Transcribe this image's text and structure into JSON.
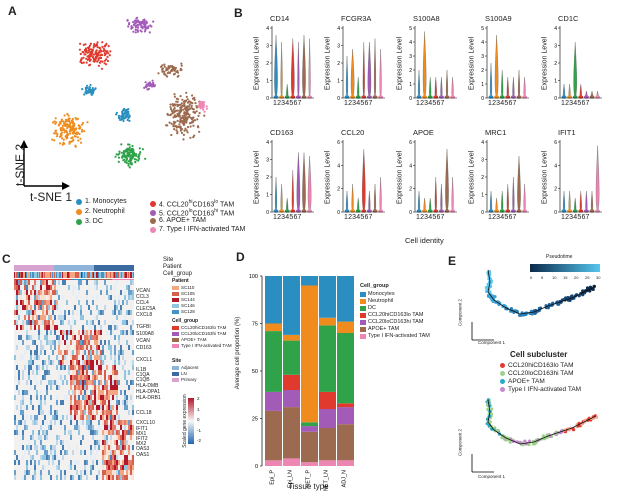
{
  "panel_labels": {
    "a": "A",
    "b": "B",
    "c": "C",
    "d": "D",
    "e": "E"
  },
  "colors": {
    "c1": "#2a8fc0",
    "c2": "#f08c1e",
    "c3": "#2fa24a",
    "c4": "#e03a2e",
    "c5": "#a35bb8",
    "c6": "#9c6a4e",
    "c7": "#ee86b4"
  },
  "panelA": {
    "axis_y": "t-SNE 2",
    "axis_x": "t-SNE 1",
    "legend": [
      {
        "label": "1. Monocytes",
        "color": "#2a8fc0"
      },
      {
        "label": "2. Neutrophil",
        "color": "#f08c1e"
      },
      {
        "label": "3. DC",
        "color": "#2fa24a"
      },
      {
        "label": "4. CCL20hiCD163lo TAM",
        "color": "#e03a2e",
        "main": "4. CCL20",
        "sup1": "hi",
        "mid": "CD163",
        "sup2": "lo",
        "tail": " TAM"
      },
      {
        "label": "5. CCL20loCD163hi TAM",
        "color": "#a35bb8",
        "main": "5. CCL20",
        "sup1": "lo",
        "mid": "CD163",
        "sup2": "hi",
        "tail": " TAM"
      },
      {
        "label": "6. APOE+ TAM",
        "color": "#9c6a4e"
      },
      {
        "label": "7. Type I IFN-activated TAM",
        "color": "#ee86b4"
      }
    ]
  },
  "panelB": {
    "ylabel": "Expression Level",
    "xlabel": "Cell identity",
    "xticks": "1234567",
    "genes_row1": [
      "CD14",
      "FCGR3A",
      "S100A8",
      "S100A9",
      "CD1C"
    ],
    "genes_row2": [
      "CD163",
      "CCL20",
      "APOE",
      "MRC1",
      "IFIT1"
    ],
    "yticks_row1": [
      [
        "4",
        "3",
        "2",
        "1",
        "0"
      ],
      [
        "4",
        "3",
        "2",
        "1",
        "0"
      ],
      [
        "5",
        "4",
        "3",
        "2",
        "1",
        "0"
      ],
      [
        "5",
        "4",
        "3",
        "2",
        "1",
        "0"
      ],
      [
        "4",
        "3",
        "2",
        "1",
        "0"
      ]
    ],
    "yticks_row2": [
      [
        "4",
        "3",
        "2",
        "1",
        "0"
      ],
      [
        "6",
        "4",
        "2",
        "0"
      ],
      [
        "6",
        "4",
        "2",
        "0"
      ],
      [
        "4",
        "3",
        "2",
        "1",
        "0"
      ],
      [
        "6",
        "4",
        "2",
        "0"
      ]
    ]
  },
  "panelC": {
    "track_labels": [
      "Site",
      "Patient",
      "Cell_group"
    ],
    "genes": [
      "VCAN",
      "CCL3",
      "CCL4",
      "CLEC5A",
      "CXCL8",
      "TGFBI",
      "S100A8",
      "VCAN",
      "CD163",
      "CXCL1",
      "IL1B",
      "C1QA",
      "C1QB",
      "HLA-DMB",
      "HLA-DPA1",
      "HLA-DRB1",
      "CCL18",
      "CXCL10",
      "IFIT1",
      "MX1",
      "IFIT2",
      "MX2",
      "OAS3",
      "OAS1"
    ],
    "patient_title": "Patient",
    "patients": [
      {
        "label": "SC110",
        "color": "#f4a582"
      },
      {
        "label": "SC105",
        "color": "#d6604d"
      },
      {
        "label": "SC144",
        "color": "#b2182b"
      },
      {
        "label": "SC146",
        "color": "#92c5de"
      },
      {
        "label": "SC128",
        "color": "#4393c3"
      }
    ],
    "group_title": "Cell_group",
    "groups": [
      {
        "label": "CCL20hiCD163lo TAM",
        "color": "#e03a2e"
      },
      {
        "label": "CCL20loCD163hi TAM",
        "color": "#a35bb8"
      },
      {
        "label": "APOE+ TAM",
        "color": "#9c6a4e"
      },
      {
        "label": "Type I IFN-activated TAM",
        "color": "#ee86b4"
      }
    ],
    "site_title": "Site",
    "sites": [
      {
        "label": "Adjacent",
        "color": "#8fb4d9"
      },
      {
        "label": "LN",
        "color": "#3b6aa0"
      },
      {
        "label": "Primary",
        "color": "#d9a3cf"
      }
    ],
    "scale_title": "Scaled gene expression",
    "scale_ticks": [
      "2",
      "1",
      "0",
      "-1",
      "-2"
    ]
  },
  "panelD": {
    "ylabel": "Average cell proportion (%)",
    "xlabel": "Tissue type",
    "yticks": [
      "100",
      "75",
      "50",
      "25",
      "0"
    ],
    "legend_title": "Cell_group",
    "legend": [
      {
        "label": "Monocytes",
        "color": "#2a8fc0"
      },
      {
        "label": "Neutrophil",
        "color": "#f08c1e"
      },
      {
        "label": "DC",
        "color": "#2fa24a"
      },
      {
        "label": "CCL20hiCD163lo TAM",
        "color": "#e03a2e"
      },
      {
        "label": "CCL20loCD163hi TAM",
        "color": "#a35bb8"
      },
      {
        "label": "APOE+ TAM",
        "color": "#9c6a4e"
      },
      {
        "label": "Type I IFN-activated TAM",
        "color": "#ee86b4"
      }
    ]
  },
  "chart_data": {
    "type": "bar",
    "stacked": true,
    "title": "",
    "xlabel": "Tissue type",
    "ylabel": "Average cell proportion (%)",
    "categories": [
      "Epi_P",
      "Epi_LN",
      "NET_P",
      "NET_LN",
      "ADJ_N"
    ],
    "ylim": [
      0,
      100
    ],
    "series": [
      {
        "name": "Type I IFN-activated TAM",
        "color": "#ee86b4",
        "values": [
          3,
          4,
          2,
          3,
          3
        ]
      },
      {
        "name": "APOE+ TAM",
        "color": "#9c6a4e",
        "values": [
          26,
          27,
          16,
          17,
          19
        ]
      },
      {
        "name": "CCL20loCD163hi TAM",
        "color": "#a35bb8",
        "values": [
          10,
          9,
          3,
          10,
          9
        ]
      },
      {
        "name": "CCL20hiCD163lo TAM",
        "color": "#e03a2e",
        "values": [
          0,
          8,
          0,
          9,
          2
        ]
      },
      {
        "name": "DC",
        "color": "#2fa24a",
        "values": [
          32,
          18,
          2,
          35,
          37
        ]
      },
      {
        "name": "Neutrophil",
        "color": "#f08c1e",
        "values": [
          4,
          3,
          72,
          4,
          6
        ]
      },
      {
        "name": "Monocytes",
        "color": "#2a8fc0",
        "values": [
          25,
          31,
          5,
          22,
          24
        ]
      }
    ]
  },
  "panelE": {
    "pseudo_title": "Pseudotime",
    "pseudo_ticks": [
      "0",
      "5",
      "10",
      "15",
      "20",
      "25",
      "30"
    ],
    "comp2": "Component 2",
    "comp1": "Component 1",
    "sub_title": "Cell subcluster",
    "sub_legend": [
      {
        "label": "CCL20hiCD163lo TAM",
        "color": "#e03a2e"
      },
      {
        "label": "CCL20loCD163hi TAM",
        "color": "#9ed28a"
      },
      {
        "label": "APOE+ TAM",
        "color": "#2aa8c8"
      },
      {
        "label": "Type I IFN-activated TAM",
        "color": "#c58ad0"
      }
    ]
  }
}
